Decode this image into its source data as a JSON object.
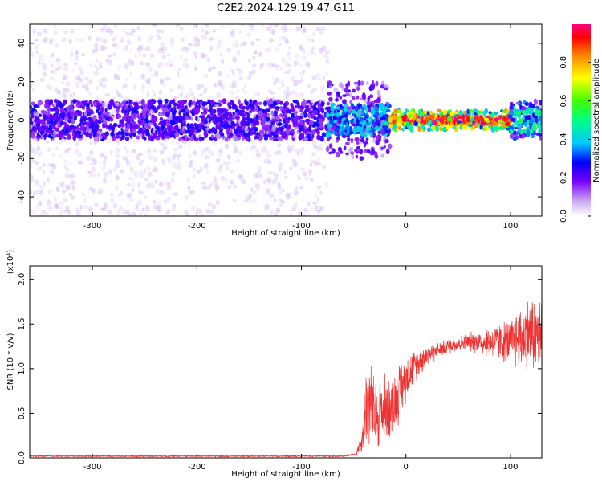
{
  "title": "C2E2.2024.129.19.47.G11",
  "chart_data": [
    {
      "type": "heatmap",
      "xlabel": "Height of straight line (km)",
      "ylabel": "Frequency (Hz)",
      "xlim": [
        -360,
        130
      ],
      "ylim": [
        -50,
        50
      ],
      "xticks": [
        -300,
        -200,
        -100,
        0,
        100
      ],
      "yticks": [
        -40,
        -20,
        0,
        20,
        40
      ],
      "grid": false,
      "colorbar": {
        "label": "Normalized spectral amplitude",
        "range": [
          0,
          1
        ],
        "ticks": [
          "0.0",
          "0.2",
          "0.4",
          "0.6",
          "0.8"
        ]
      },
      "regions": [
        {
          "x_range": [
            -360,
            -75
          ],
          "freq_center": 0,
          "core_halfwidth_hz": 10,
          "spread_hz": 50,
          "amplitude": [
            0.05,
            0.2
          ]
        },
        {
          "x_range": [
            -75,
            -15
          ],
          "freq_center": 0,
          "core_halfwidth_hz": 8,
          "spread_hz": 20,
          "amplitude": [
            0.2,
            0.4
          ]
        },
        {
          "x_range": [
            -15,
            100
          ],
          "freq_center": 0,
          "core_halfwidth_hz": 2,
          "spread_hz": 5,
          "amplitude": [
            0.7,
            1.0
          ]
        },
        {
          "x_range": [
            100,
            130
          ],
          "freq_center": 0,
          "core_halfwidth_hz": 6,
          "spread_hz": 10,
          "amplitude": [
            0.3,
            0.5
          ]
        }
      ]
    },
    {
      "type": "line",
      "xlabel": "Height of straight line (km)",
      "ylabel": "SNR (10 * v/v)",
      "y_multiplier": "(x10⁴)",
      "xlim": [
        -360,
        130
      ],
      "ylim": [
        0,
        2.15
      ],
      "xticks": [
        -300,
        -200,
        -100,
        0,
        100
      ],
      "yticks": [
        "0.0",
        "0.5",
        "1.0",
        "1.5",
        "2.0"
      ],
      "grid": false,
      "series": [
        {
          "color": "#ee3333",
          "x": [
            -360,
            -300,
            -200,
            -100,
            -60,
            -48,
            -42,
            -38,
            -35,
            -30,
            -25,
            -20,
            -15,
            -10,
            0,
            10,
            20,
            30,
            40,
            50,
            60,
            70,
            80,
            90,
            100,
            110,
            120,
            130
          ],
          "y": [
            0.02,
            0.02,
            0.02,
            0.02,
            0.02,
            0.04,
            0.2,
            0.6,
            0.65,
            0.45,
            0.5,
            0.55,
            0.55,
            0.65,
            0.9,
            1.05,
            1.15,
            1.2,
            1.25,
            1.28,
            1.3,
            1.3,
            1.3,
            1.3,
            1.3,
            1.35,
            1.4,
            1.35
          ],
          "noise_amplitude": [
            0.01,
            0.01,
            0.01,
            0.01,
            0.01,
            0.02,
            0.15,
            0.6,
            0.6,
            0.5,
            0.45,
            0.45,
            0.4,
            0.4,
            0.3,
            0.2,
            0.15,
            0.1,
            0.1,
            0.1,
            0.12,
            0.15,
            0.2,
            0.25,
            0.3,
            0.45,
            0.5,
            0.5
          ]
        }
      ]
    }
  ]
}
